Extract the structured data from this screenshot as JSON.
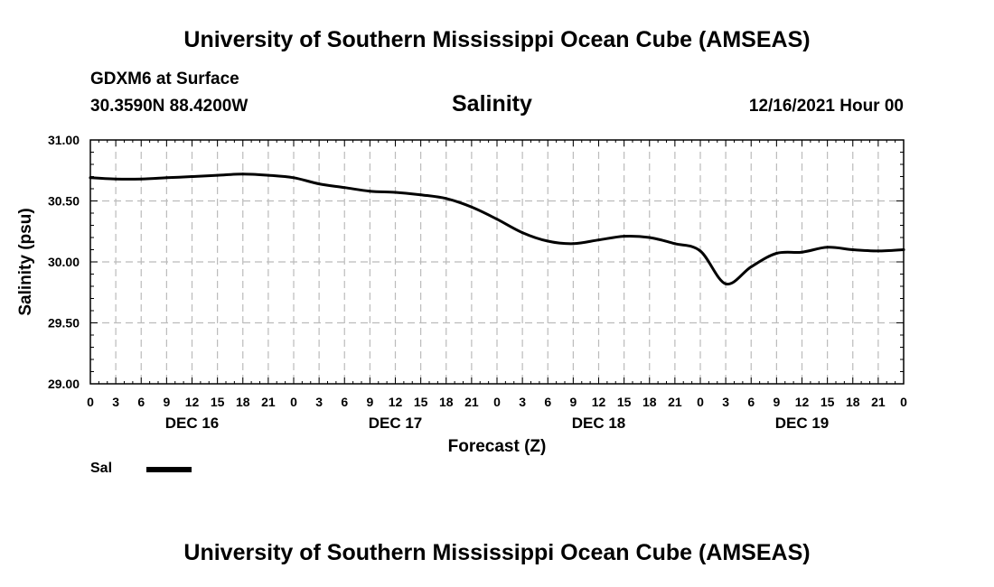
{
  "header": {
    "title": "University of Southern Mississippi Ocean Cube (AMSEAS)",
    "station": "GDXM6 at Surface",
    "coords": "30.3590N  88.4200W",
    "variable": "Salinity",
    "datetime": "12/16/2021 Hour 00"
  },
  "footer": {
    "title": "University of Southern Mississippi Ocean Cube (AMSEAS)"
  },
  "legend": {
    "label": "Sal",
    "color": "#000000"
  },
  "chart_data": {
    "type": "line",
    "title": "Salinity",
    "xlabel": "Forecast (Z)",
    "ylabel": "Salinity (psu)",
    "xlim": [
      0,
      96
    ],
    "ylim": [
      29.0,
      31.0
    ],
    "yticks": [
      "29.00",
      "29.50",
      "30.00",
      "30.50",
      "31.00"
    ],
    "ytick_values": [
      29.0,
      29.5,
      30.0,
      30.5,
      31.0
    ],
    "xtick_hours": [
      0,
      3,
      6,
      9,
      12,
      15,
      18,
      21,
      24,
      27,
      30,
      33,
      36,
      39,
      42,
      45,
      48,
      51,
      54,
      57,
      60,
      63,
      66,
      69,
      72,
      75,
      78,
      81,
      84,
      87,
      90,
      93,
      96
    ],
    "xtick_labels": [
      "0",
      "3",
      "6",
      "9",
      "12",
      "15",
      "18",
      "21",
      "0",
      "3",
      "6",
      "9",
      "12",
      "15",
      "18",
      "21",
      "0",
      "3",
      "6",
      "9",
      "12",
      "15",
      "18",
      "21",
      "0",
      "3",
      "6",
      "9",
      "12",
      "15",
      "18",
      "21",
      "0"
    ],
    "day_labels": [
      {
        "hour": 12,
        "label": "DEC 16"
      },
      {
        "hour": 36,
        "label": "DEC 17"
      },
      {
        "hour": 60,
        "label": "DEC 18"
      },
      {
        "hour": 84,
        "label": "DEC 19"
      }
    ],
    "grid": true,
    "series": [
      {
        "name": "Sal",
        "x": [
          0,
          3,
          6,
          9,
          12,
          15,
          18,
          21,
          24,
          27,
          30,
          33,
          36,
          39,
          42,
          45,
          48,
          51,
          54,
          57,
          60,
          63,
          66,
          69,
          72,
          75,
          78,
          81,
          84,
          87,
          90,
          93,
          96
        ],
        "values": [
          30.69,
          30.68,
          30.68,
          30.69,
          30.7,
          30.71,
          30.72,
          30.71,
          30.69,
          30.64,
          30.61,
          30.58,
          30.57,
          30.55,
          30.52,
          30.45,
          30.35,
          30.24,
          30.17,
          30.15,
          30.18,
          30.21,
          30.2,
          30.15,
          30.09,
          29.82,
          29.96,
          30.07,
          30.08,
          30.12,
          30.1,
          30.09,
          30.1
        ]
      }
    ]
  }
}
